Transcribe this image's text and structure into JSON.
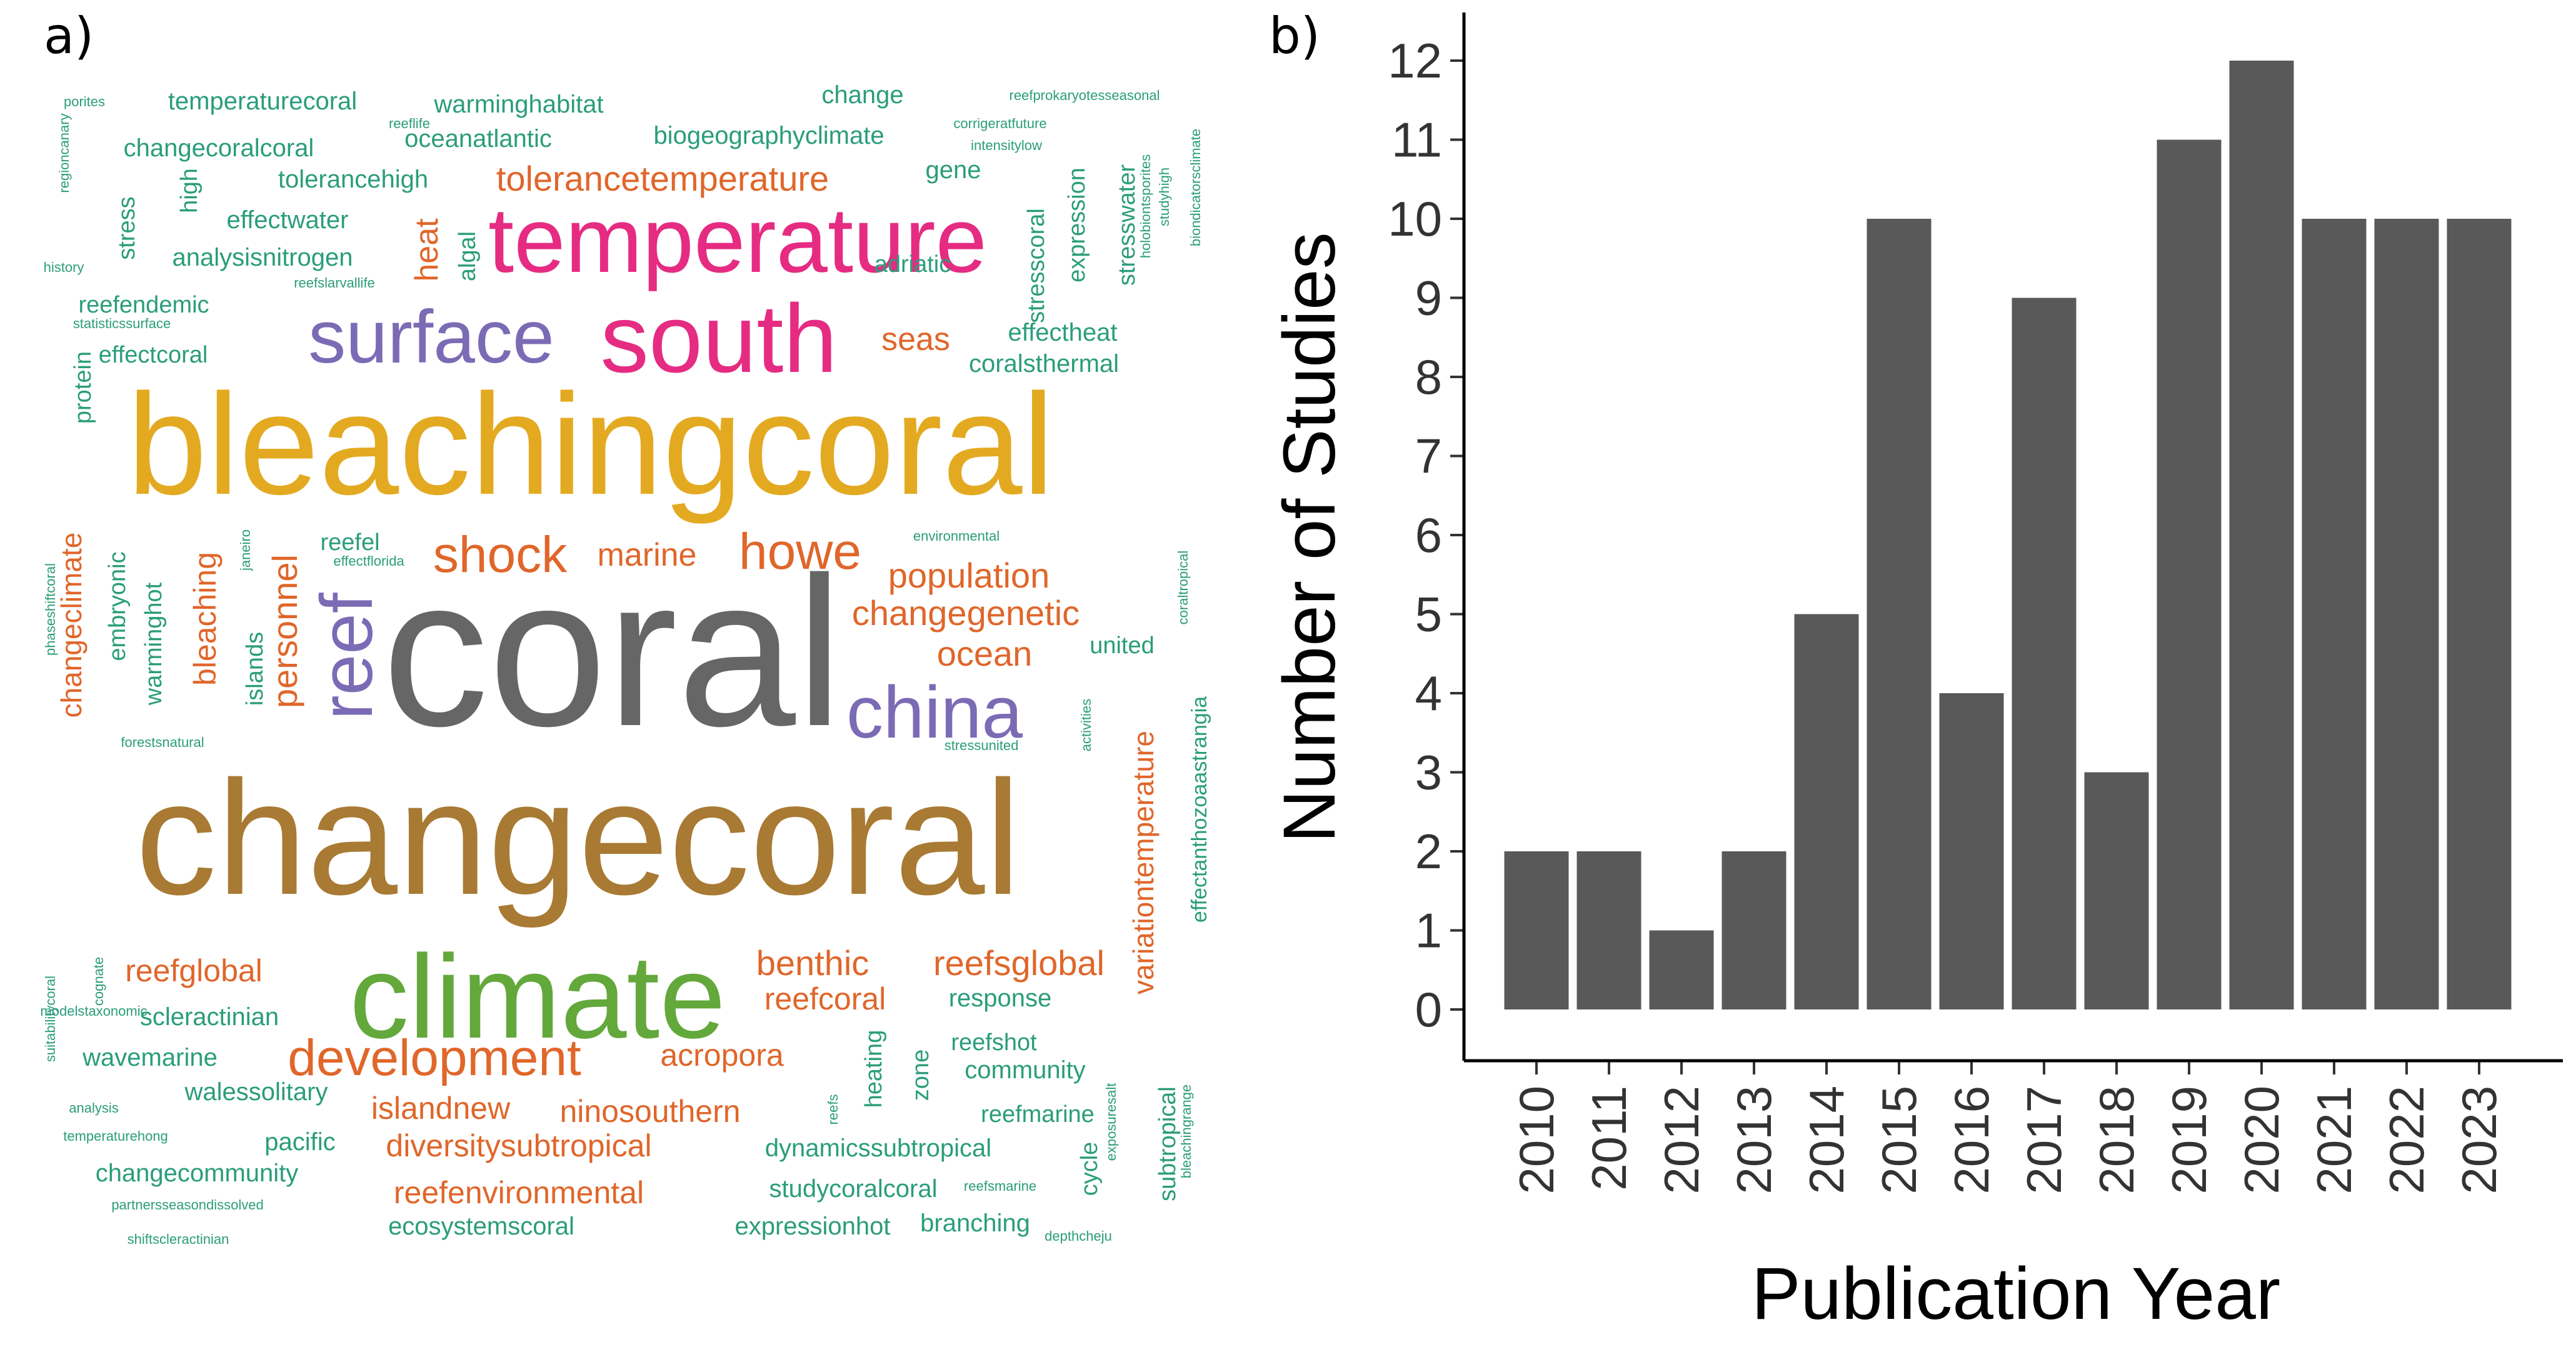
{
  "panels": {
    "a": "a)",
    "b": "b)"
  },
  "word_cloud": {
    "palette": {
      "teal": "#2a9d7a",
      "orange": "#e0662a",
      "pink": "#e52c82",
      "purple": "#7b6bb5",
      "gold": "#e3aa21",
      "green": "#63a83b",
      "gray": "#666666",
      "brown": "#a87a33"
    },
    "words": [
      {
        "text": "coral",
        "size": 340,
        "color": "gray"
      },
      {
        "text": "changecoral",
        "size": 260,
        "color": "brown"
      },
      {
        "text": "bleachingcoral",
        "size": 230,
        "color": "gold"
      },
      {
        "text": "climate",
        "size": 190,
        "color": "green"
      },
      {
        "text": "south",
        "size": 155,
        "color": "pink"
      },
      {
        "text": "temperature",
        "size": 148,
        "color": "pink"
      },
      {
        "text": "surface",
        "size": 120,
        "color": "purple"
      },
      {
        "text": "china",
        "size": 118,
        "color": "purple"
      },
      {
        "text": "reef",
        "size": 118,
        "color": "purple"
      },
      {
        "text": "development",
        "size": 82,
        "color": "orange"
      },
      {
        "text": "shock",
        "size": 82,
        "color": "orange"
      },
      {
        "text": "howe",
        "size": 82,
        "color": "orange"
      },
      {
        "text": "tolerancetemperature",
        "size": 56,
        "color": "orange"
      },
      {
        "text": "population",
        "size": 56,
        "color": "orange"
      },
      {
        "text": "changegenetic",
        "size": 56,
        "color": "orange"
      },
      {
        "text": "ocean",
        "size": 56,
        "color": "orange"
      },
      {
        "text": "marine",
        "size": 52,
        "color": "orange"
      },
      {
        "text": "benthic",
        "size": 56,
        "color": "orange"
      },
      {
        "text": "reefsglobal",
        "size": 56,
        "color": "orange"
      },
      {
        "text": "reefcoral",
        "size": 50,
        "color": "orange"
      },
      {
        "text": "reefglobal",
        "size": 50,
        "color": "orange"
      },
      {
        "text": "acropora",
        "size": 50,
        "color": "orange"
      },
      {
        "text": "ninosouthern",
        "size": 50,
        "color": "orange"
      },
      {
        "text": "islandnew",
        "size": 50,
        "color": "orange"
      },
      {
        "text": "diversitysubtropical",
        "size": 50,
        "color": "orange"
      },
      {
        "text": "reefenvironmental",
        "size": 50,
        "color": "orange"
      },
      {
        "text": "seas",
        "size": 52,
        "color": "orange"
      },
      {
        "text": "heat",
        "size": 52,
        "color": "orange"
      },
      {
        "text": "bleaching",
        "size": 50,
        "color": "orange"
      },
      {
        "text": "personnel",
        "size": 56,
        "color": "orange"
      },
      {
        "text": "changeclimate",
        "size": 46,
        "color": "orange"
      },
      {
        "text": "variationtemperature",
        "size": 46,
        "color": "orange"
      },
      {
        "text": "temperaturecoral",
        "size": 40,
        "color": "teal"
      },
      {
        "text": "warminghabitat",
        "size": 40,
        "color": "teal"
      },
      {
        "text": "change",
        "size": 40,
        "color": "teal"
      },
      {
        "text": "oceanatlantic",
        "size": 40,
        "color": "teal"
      },
      {
        "text": "biogeographyclimate",
        "size": 40,
        "color": "teal"
      },
      {
        "text": "changecoralcoral",
        "size": 40,
        "color": "teal"
      },
      {
        "text": "tolerancehigh",
        "size": 40,
        "color": "teal"
      },
      {
        "text": "gene",
        "size": 40,
        "color": "teal"
      },
      {
        "text": "effectwater",
        "size": 40,
        "color": "teal"
      },
      {
        "text": "analysisnitrogen",
        "size": 40,
        "color": "teal"
      },
      {
        "text": "reefendemic",
        "size": 38,
        "color": "teal"
      },
      {
        "text": "effectcoral",
        "size": 38,
        "color": "teal"
      },
      {
        "text": "adriatic",
        "size": 38,
        "color": "teal"
      },
      {
        "text": "effectheat",
        "size": 40,
        "color": "teal"
      },
      {
        "text": "coralsthermal",
        "size": 40,
        "color": "teal"
      },
      {
        "text": "reefel",
        "size": 38,
        "color": "teal"
      },
      {
        "text": "united",
        "size": 38,
        "color": "teal"
      },
      {
        "text": "scleractinian",
        "size": 40,
        "color": "teal"
      },
      {
        "text": "response",
        "size": 40,
        "color": "teal"
      },
      {
        "text": "reefshot",
        "size": 38,
        "color": "teal"
      },
      {
        "text": "community",
        "size": 40,
        "color": "teal"
      },
      {
        "text": "wavemarine",
        "size": 40,
        "color": "teal"
      },
      {
        "text": "walessolitary",
        "size": 40,
        "color": "teal"
      },
      {
        "text": "reefmarine",
        "size": 38,
        "color": "teal"
      },
      {
        "text": "pacific",
        "size": 40,
        "color": "teal"
      },
      {
        "text": "dynamicssubtropical",
        "size": 40,
        "color": "teal"
      },
      {
        "text": "changecommunity",
        "size": 40,
        "color": "teal"
      },
      {
        "text": "studycoralcoral",
        "size": 40,
        "color": "teal"
      },
      {
        "text": "ecosystemscoral",
        "size": 40,
        "color": "teal"
      },
      {
        "text": "expressionhot",
        "size": 40,
        "color": "teal"
      },
      {
        "text": "branching",
        "size": 40,
        "color": "teal"
      },
      {
        "text": "stress",
        "size": 38,
        "color": "teal"
      },
      {
        "text": "high",
        "size": 38,
        "color": "teal"
      },
      {
        "text": "algal",
        "size": 38,
        "color": "teal"
      },
      {
        "text": "stresscoral",
        "size": 38,
        "color": "teal"
      },
      {
        "text": "expression",
        "size": 38,
        "color": "teal"
      },
      {
        "text": "stresswater",
        "size": 38,
        "color": "teal"
      },
      {
        "text": "protein",
        "size": 38,
        "color": "teal"
      },
      {
        "text": "embryonic",
        "size": 38,
        "color": "teal"
      },
      {
        "text": "warminghot",
        "size": 38,
        "color": "teal"
      },
      {
        "text": "islands",
        "size": 38,
        "color": "teal"
      },
      {
        "text": "effectanthozoaastrangia",
        "size": 34,
        "color": "teal"
      },
      {
        "text": "heating",
        "size": 38,
        "color": "teal"
      },
      {
        "text": "zone",
        "size": 38,
        "color": "teal"
      },
      {
        "text": "cycle",
        "size": 38,
        "color": "teal"
      },
      {
        "text": "subtropical",
        "size": 38,
        "color": "teal"
      },
      {
        "text": "porites",
        "size": 22,
        "color": "teal"
      },
      {
        "text": "reeflife",
        "size": 22,
        "color": "teal"
      },
      {
        "text": "reefprokaryotesseasonal",
        "size": 22,
        "color": "teal"
      },
      {
        "text": "corrigeratfuture",
        "size": 22,
        "color": "teal"
      },
      {
        "text": "intensitylow",
        "size": 22,
        "color": "teal"
      },
      {
        "text": "history",
        "size": 22,
        "color": "teal"
      },
      {
        "text": "reefslarvallife",
        "size": 22,
        "color": "teal"
      },
      {
        "text": "statisticssurface",
        "size": 22,
        "color": "teal"
      },
      {
        "text": "regioncanary",
        "size": 22,
        "color": "teal"
      },
      {
        "text": "holobiontsporites",
        "size": 22,
        "color": "teal"
      },
      {
        "text": "studyhigh",
        "size": 22,
        "color": "teal"
      },
      {
        "text": "biondicatorsclimate",
        "size": 22,
        "color": "teal"
      },
      {
        "text": "environmental",
        "size": 22,
        "color": "teal"
      },
      {
        "text": "effectflorida",
        "size": 22,
        "color": "teal"
      },
      {
        "text": "janeiro",
        "size": 22,
        "color": "teal"
      },
      {
        "text": "phaseshiftcoral",
        "size": 22,
        "color": "teal"
      },
      {
        "text": "forestsnatural",
        "size": 22,
        "color": "teal"
      },
      {
        "text": "stressunited",
        "size": 22,
        "color": "teal"
      },
      {
        "text": "activities",
        "size": 22,
        "color": "teal"
      },
      {
        "text": "coraltropical",
        "size": 22,
        "color": "teal"
      },
      {
        "text": "suitabilitycoral",
        "size": 22,
        "color": "teal"
      },
      {
        "text": "cognate",
        "size": 22,
        "color": "teal"
      },
      {
        "text": "modelstaxonomic",
        "size": 22,
        "color": "teal"
      },
      {
        "text": "analysis",
        "size": 22,
        "color": "teal"
      },
      {
        "text": "temperaturehong",
        "size": 22,
        "color": "teal"
      },
      {
        "text": "partnersseasondissolved",
        "size": 22,
        "color": "teal"
      },
      {
        "text": "shiftscleractinian",
        "size": 22,
        "color": "teal"
      },
      {
        "text": "reefs",
        "size": 22,
        "color": "teal"
      },
      {
        "text": "reefsmarine",
        "size": 22,
        "color": "teal"
      },
      {
        "text": "exposuresalt",
        "size": 22,
        "color": "teal"
      },
      {
        "text": "bleachingrange",
        "size": 22,
        "color": "teal"
      },
      {
        "text": "depthcheju",
        "size": 22,
        "color": "teal"
      }
    ]
  },
  "chart_data": {
    "type": "bar",
    "categories": [
      "2010",
      "2011",
      "2012",
      "2013",
      "2014",
      "2015",
      "2016",
      "2017",
      "2018",
      "2019",
      "2020",
      "2021",
      "2022",
      "2023"
    ],
    "values": [
      2,
      2,
      1,
      2,
      5,
      10,
      4,
      9,
      3,
      11,
      12,
      10,
      10,
      10
    ],
    "xlabel": "Publication Year",
    "ylabel": "Number of Studies",
    "ylim": [
      0,
      12.5
    ],
    "yticks": [
      0,
      1,
      2,
      3,
      4,
      5,
      6,
      7,
      8,
      9,
      10,
      11,
      12
    ],
    "bar_color": "#595959",
    "grid": false
  }
}
